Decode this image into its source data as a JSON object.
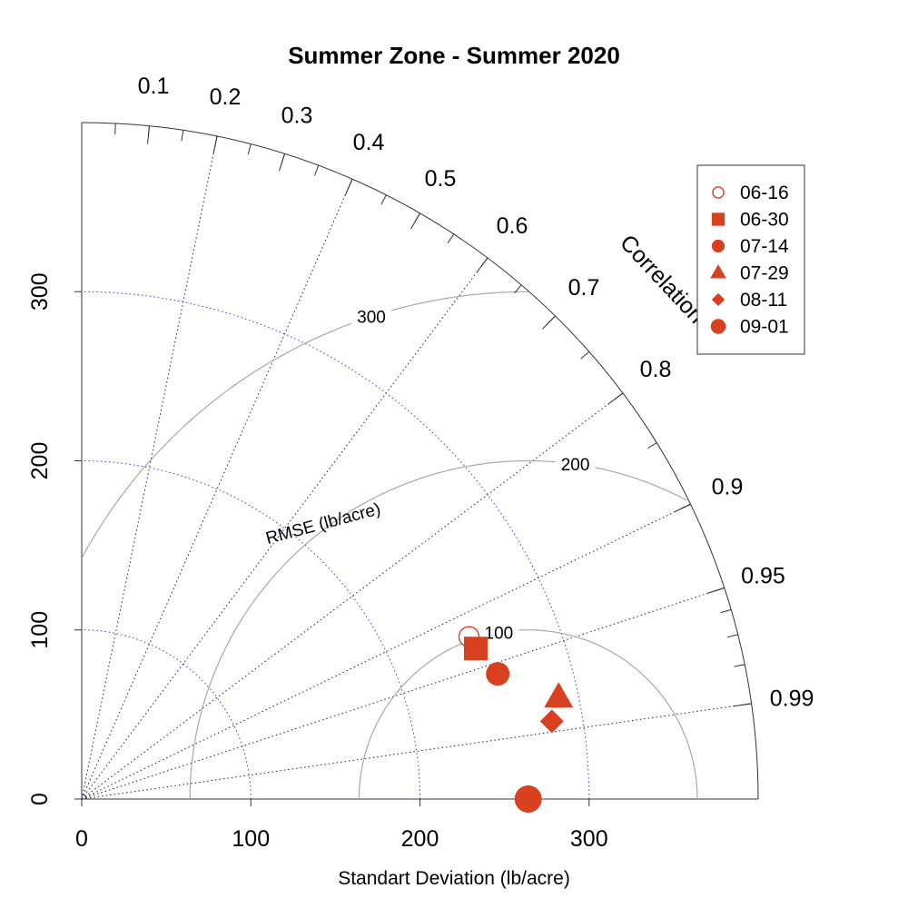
{
  "chart_data": {
    "type": "scatter",
    "subtype": "taylor-diagram",
    "title": "Summer Zone - Summer 2020",
    "xlabel": "Standart Deviation (lb/acre)",
    "correlation_label": "Correlation",
    "rmse_label": "RMSE (lb/acre)",
    "sd_range": [
      0,
      400
    ],
    "sd_ticks": [
      0,
      100,
      200,
      300
    ],
    "sd_tick_labels": [
      "0",
      "100",
      "200",
      "300"
    ],
    "sd_dotted_arcs": [
      100,
      200,
      300
    ],
    "correlation_ticks": [
      0.1,
      0.2,
      0.3,
      0.4,
      0.5,
      0.6,
      0.7,
      0.8,
      0.9,
      0.95,
      0.99
    ],
    "correlation_tick_labels": [
      "0.1",
      "0.2",
      "0.3",
      "0.4",
      "0.5",
      "0.6",
      "0.7",
      "0.8",
      "0.9",
      "0.95",
      "0.99"
    ],
    "correlation_lines": [
      0.2,
      0.4,
      0.6,
      0.8,
      0.9,
      0.95,
      0.99
    ],
    "reference_sd": 264,
    "rmse_arcs": [
      100,
      200,
      300
    ],
    "rmse_arc_labels": [
      "100",
      "200",
      "300"
    ],
    "legend_position": "top-right",
    "color": "#d9401f",
    "series": [
      {
        "name": "06-16",
        "marker": "open-circle",
        "x": 229,
        "y": 96
      },
      {
        "name": "06-30",
        "marker": "square",
        "x": 233,
        "y": 89
      },
      {
        "name": "07-14",
        "marker": "circle",
        "x": 246,
        "y": 74
      },
      {
        "name": "07-29",
        "marker": "triangle",
        "x": 282,
        "y": 60
      },
      {
        "name": "08-11",
        "marker": "diamond",
        "x": 278,
        "y": 46
      },
      {
        "name": "09-01",
        "marker": "circle-large",
        "x": 264,
        "y": 0
      }
    ]
  }
}
